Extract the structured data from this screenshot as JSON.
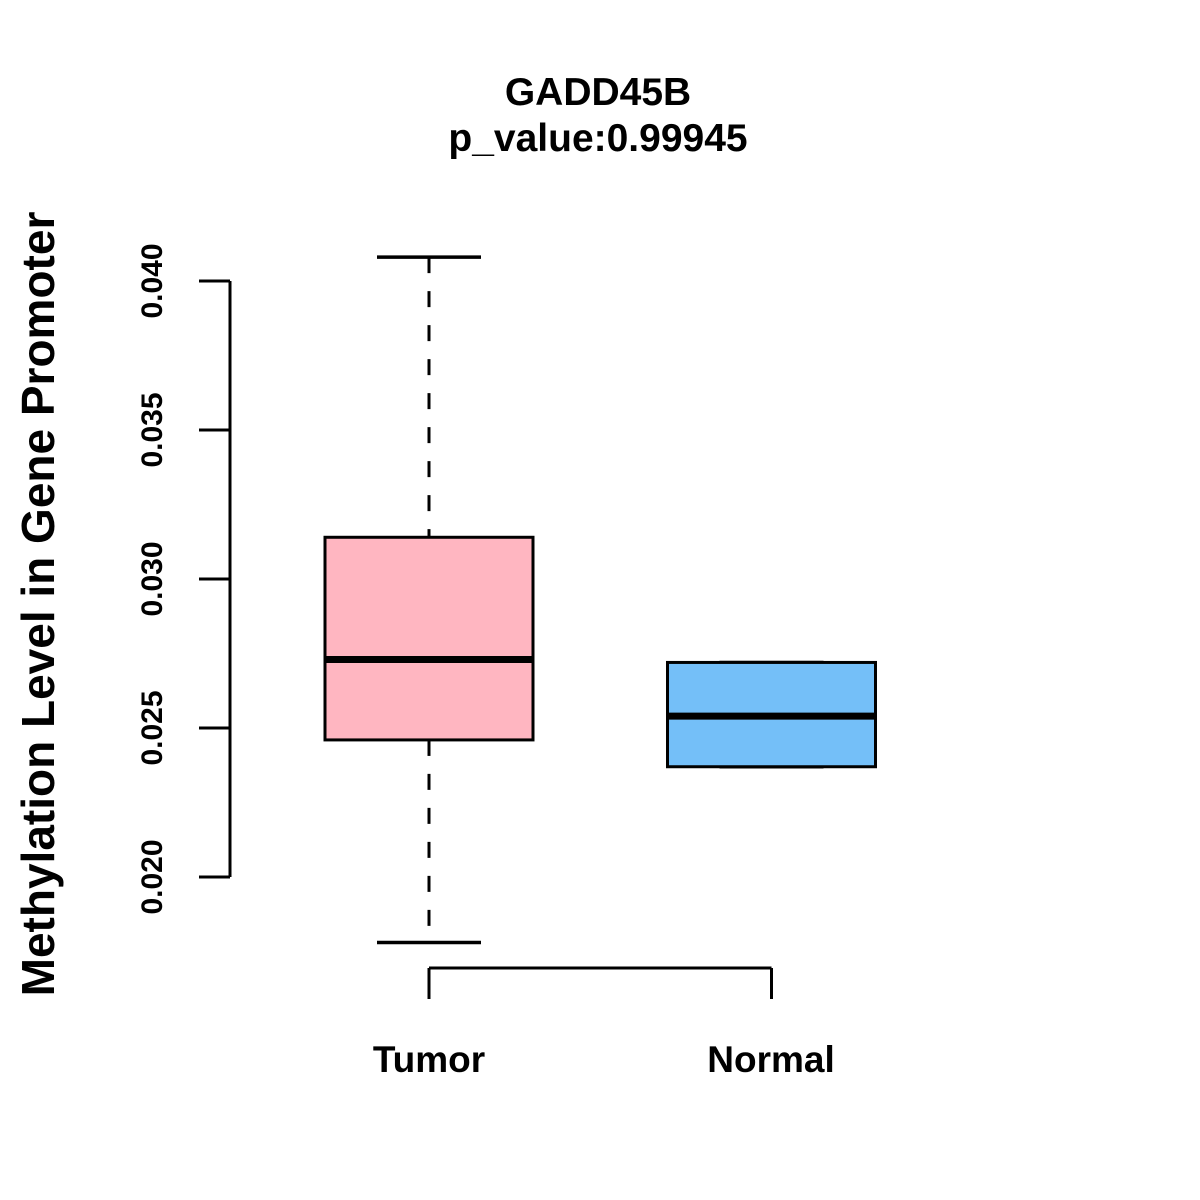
{
  "chart_data": {
    "type": "boxplot",
    "title": "GADD45B",
    "subtitle": "p_value:0.99945",
    "p_value": 0.99945,
    "ylabel": "Methylation Level in Gene Promoter",
    "xlabel": "",
    "categories": [
      "Tumor",
      "Normal"
    ],
    "yticks": [
      "0.020",
      "0.025",
      "0.030",
      "0.035",
      "0.040"
    ],
    "ylim": [
      0.0175,
      0.041
    ],
    "grid": false,
    "legend": "none",
    "series": [
      {
        "name": "Tumor",
        "whisker_low": 0.0178,
        "q1": 0.0246,
        "median": 0.0273,
        "q3": 0.0314,
        "whisker_high": 0.0408,
        "fill": "#FFB6C1"
      },
      {
        "name": "Normal",
        "whisker_low": 0.0237,
        "q1": 0.0237,
        "median": 0.0254,
        "q3": 0.0272,
        "whisker_high": 0.0272,
        "fill": "#74BFF8"
      }
    ]
  },
  "colors": {
    "stroke": "#000000",
    "background": "#FFFFFF",
    "tumor_fill": "#FFB6C1",
    "normal_fill": "#74BFF8"
  }
}
